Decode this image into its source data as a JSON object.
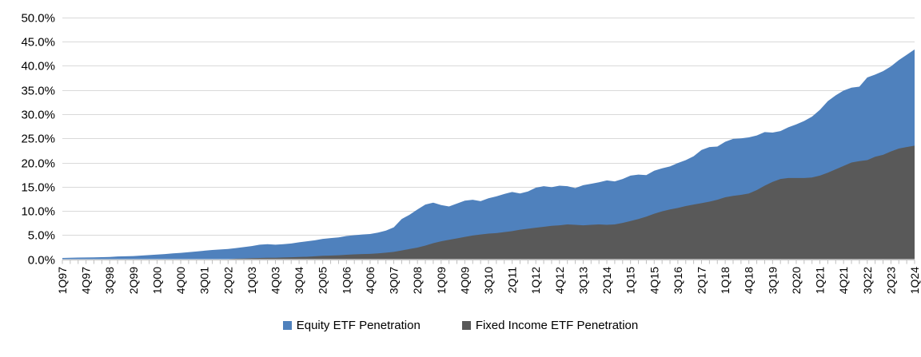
{
  "chart_data": {
    "type": "area",
    "title": "",
    "x_start": "1Q97",
    "x_end": "1Q24",
    "frequency": "quarterly",
    "x_label_every_n_points": 3,
    "x_tick_labels": [
      "1Q97",
      "4Q97",
      "3Q98",
      "2Q99",
      "1Q00",
      "4Q00",
      "3Q01",
      "2Q02",
      "1Q03",
      "4Q03",
      "3Q04",
      "2Q05",
      "1Q06",
      "4Q06",
      "3Q07",
      "2Q08",
      "1Q09",
      "4Q09",
      "3Q10",
      "2Q11",
      "1Q12",
      "4Q12",
      "3Q13",
      "2Q14",
      "1Q15",
      "4Q15",
      "3Q16",
      "2Q17",
      "1Q18",
      "4Q18",
      "3Q19",
      "2Q20",
      "1Q21",
      "4Q21",
      "3Q22",
      "2Q23",
      "1Q24"
    ],
    "y_tick_labels": [
      "50.0%",
      "45.0%",
      "40.0%",
      "35.0%",
      "30.0%",
      "25.0%",
      "20.0%",
      "15.0%",
      "10.0%",
      "5.0%",
      "0.0%"
    ],
    "ylim": [
      0,
      50
    ],
    "grid": "horizontal",
    "legend_position": "bottom",
    "series": [
      {
        "name": "Equity ETF Penetration",
        "color": "#4F81BD",
        "values": [
          0.25,
          0.28,
          0.32,
          0.35,
          0.38,
          0.42,
          0.45,
          0.55,
          0.6,
          0.65,
          0.75,
          0.85,
          0.95,
          1.05,
          1.2,
          1.3,
          1.45,
          1.6,
          1.75,
          1.9,
          2.0,
          2.1,
          2.3,
          2.5,
          2.7,
          3.0,
          3.1,
          3.0,
          3.1,
          3.25,
          3.5,
          3.7,
          3.9,
          4.2,
          4.35,
          4.5,
          4.8,
          4.95,
          5.1,
          5.2,
          5.5,
          5.9,
          6.6,
          8.3,
          9.2,
          10.3,
          11.3,
          11.7,
          11.2,
          10.9,
          11.5,
          12.1,
          12.3,
          12.0,
          12.6,
          13.0,
          13.5,
          13.9,
          13.6,
          14.0,
          14.8,
          15.1,
          14.9,
          15.2,
          15.1,
          14.7,
          15.3,
          15.6,
          15.9,
          16.3,
          16.1,
          16.6,
          17.3,
          17.5,
          17.4,
          18.3,
          18.8,
          19.2,
          19.9,
          20.5,
          21.3,
          22.6,
          23.2,
          23.3,
          24.3,
          24.9,
          25.0,
          25.2,
          25.6,
          26.3,
          26.2,
          26.5,
          27.3,
          27.9,
          28.6,
          29.5,
          30.9,
          32.7,
          33.9,
          34.9,
          35.5,
          35.7,
          37.6,
          38.2,
          38.9,
          39.9,
          41.2,
          42.3,
          43.4
        ]
      },
      {
        "name": "Fixed Income ETF Penetration",
        "color": "#595959",
        "values": [
          0,
          0,
          0,
          0,
          0,
          0,
          0,
          0,
          0,
          0,
          0,
          0,
          0,
          0,
          0,
          0,
          0,
          0,
          0,
          0,
          0,
          0,
          0.1,
          0.15,
          0.2,
          0.25,
          0.3,
          0.3,
          0.35,
          0.4,
          0.45,
          0.5,
          0.6,
          0.7,
          0.75,
          0.8,
          0.9,
          1.0,
          1.05,
          1.1,
          1.2,
          1.35,
          1.5,
          1.8,
          2.1,
          2.4,
          2.8,
          3.3,
          3.7,
          4.0,
          4.3,
          4.6,
          4.9,
          5.1,
          5.3,
          5.4,
          5.6,
          5.8,
          6.1,
          6.3,
          6.5,
          6.7,
          6.9,
          7.0,
          7.2,
          7.1,
          7.0,
          7.1,
          7.2,
          7.1,
          7.2,
          7.5,
          7.9,
          8.3,
          8.8,
          9.4,
          9.9,
          10.3,
          10.6,
          11.0,
          11.3,
          11.6,
          11.9,
          12.3,
          12.8,
          13.1,
          13.3,
          13.6,
          14.3,
          15.2,
          16.0,
          16.6,
          16.8,
          16.8,
          16.8,
          16.9,
          17.3,
          17.9,
          18.6,
          19.3,
          20.0,
          20.3,
          20.5,
          21.2,
          21.6,
          22.3,
          22.9,
          23.2,
          23.5
        ]
      }
    ],
    "colors": {
      "gridline": "#D9D9D9",
      "axis": "#BFBFBF",
      "text": "#000000"
    }
  }
}
